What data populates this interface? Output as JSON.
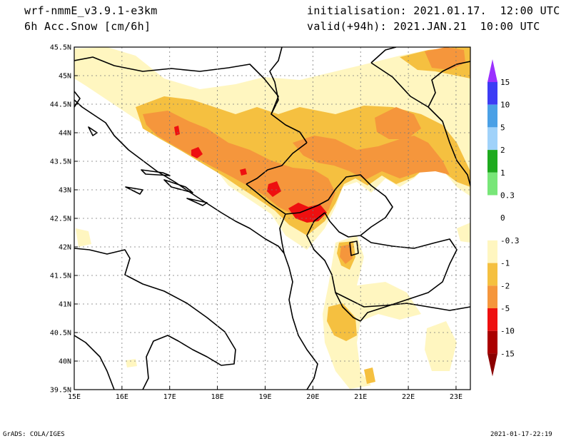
{
  "header": {
    "model": "wrf-nmmE_v3.9.1-e3km",
    "field": "6h Acc.Snow [cm/6h]",
    "init": "initialisation: 2021.01.17.  12:00 UTC",
    "valid": "valid(+94h): 2021.JAN.21  10:00 UTC"
  },
  "map": {
    "lat_labels": [
      "45.5N",
      "45N",
      "44.5N",
      "44N",
      "43.5N",
      "43N",
      "42.5N",
      "42N",
      "41.5N",
      "41N",
      "40.5N",
      "40N",
      "39.5N"
    ],
    "lon_labels": [
      "15E",
      "16E",
      "17E",
      "18E",
      "19E",
      "20E",
      "21E",
      "22E",
      "23E"
    ],
    "extent": {
      "lon_min": 15,
      "lon_max": 23.3,
      "lat_min": 39.5,
      "lat_max": 45.5
    }
  },
  "legend": {
    "levels": [
      {
        "label": "15",
        "color": "#a020f0"
      },
      {
        "label": "10",
        "color": "#3c3cf5"
      },
      {
        "label": "5",
        "color": "#4aa0e6"
      },
      {
        "label": "2",
        "color": "#a0d2fa"
      },
      {
        "label": "1",
        "color": "#1eaa1e"
      },
      {
        "label": "0.3",
        "color": "#78e678"
      },
      {
        "label": "0",
        "color": "#ffffff"
      },
      {
        "label": "-0.3",
        "color": "#ffffff"
      },
      {
        "label": "-1",
        "color": "#fff6c0"
      },
      {
        "label": "-2",
        "color": "#f5c040"
      },
      {
        "label": "-5",
        "color": "#f5963c"
      },
      {
        "label": "-10",
        "color": "#ee1010"
      },
      {
        "label": "-15",
        "color": "#aa0000"
      }
    ],
    "bottom_color": "#8b0000",
    "top_color": "#9b30ff"
  },
  "footer": {
    "left": "GrADS: COLA/IGES",
    "right": "2021-01-17-22:19"
  }
}
